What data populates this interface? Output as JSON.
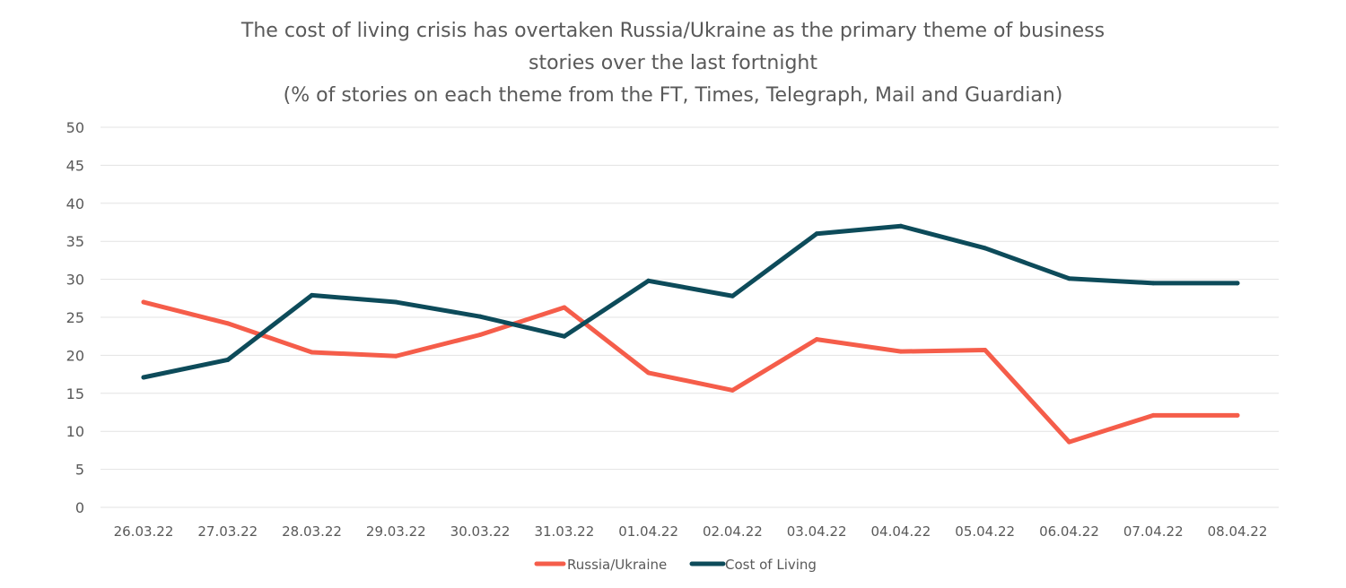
{
  "chart_data": {
    "type": "line",
    "title_lines": [
      "The cost of living crisis has overtaken Russia/Ukraine as the primary theme of business",
      "stories over the last fortnight",
      "(% of stories on each theme from the FT, Times, Telegraph, Mail and Guardian)"
    ],
    "xlabel": "",
    "ylabel": "",
    "ylim": [
      0,
      50
    ],
    "ytick_values": [
      0,
      5,
      10,
      15,
      20,
      25,
      30,
      35,
      40,
      45,
      50
    ],
    "ytick_labels": [
      "0",
      "5",
      "10",
      "15",
      "20",
      "25",
      "30",
      "35",
      "40",
      "45",
      "50"
    ],
    "grid": true,
    "legend_position": "bottom",
    "categories": [
      "26.03.22",
      "27.03.22",
      "28.03.22",
      "29.03.22",
      "30.03.22",
      "31.03.22",
      "01.04.22",
      "02.04.22",
      "03.04.22",
      "04.04.22",
      "05.04.22",
      "06.04.22",
      "07.04.22",
      "08.04.22"
    ],
    "series": [
      {
        "name": "Russia/Ukraine",
        "color": "#f55d4a",
        "values": [
          27.0,
          24.2,
          20.4,
          19.9,
          22.7,
          26.3,
          17.7,
          15.4,
          22.1,
          20.5,
          20.7,
          8.6,
          12.1,
          12.1
        ]
      },
      {
        "name": "Cost of Living",
        "color": "#0d4b5a",
        "values": [
          17.1,
          19.4,
          27.9,
          27.0,
          25.1,
          22.5,
          29.8,
          27.8,
          36.0,
          37.0,
          34.1,
          30.1,
          29.5,
          29.5
        ]
      }
    ]
  }
}
